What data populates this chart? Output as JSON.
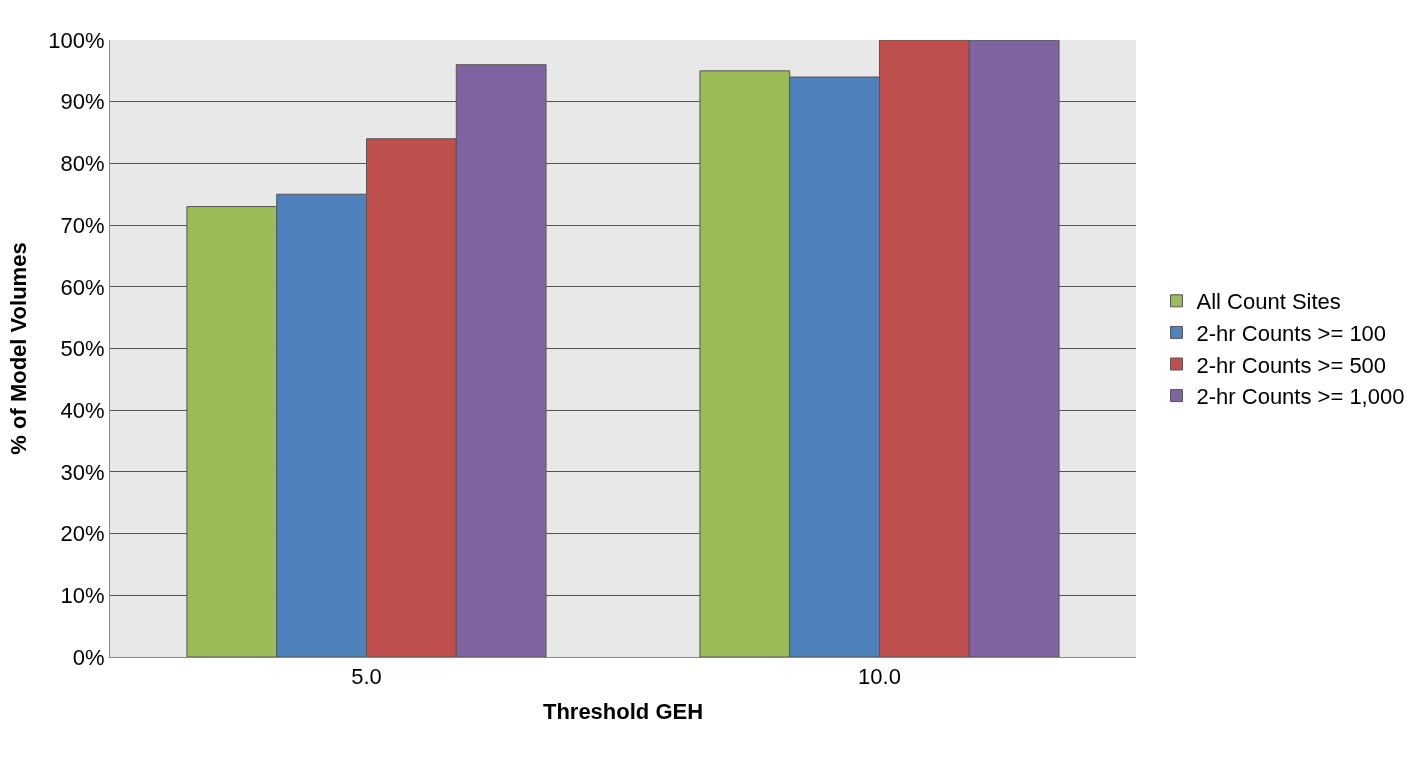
{
  "chart_data": {
    "type": "bar",
    "xlabel": "Threshold GEH",
    "ylabel": "% of Model Volumes",
    "categories": [
      "5.0",
      "10.0"
    ],
    "series": [
      {
        "name": "All Count Sites",
        "color": "#9bbb59",
        "values": [
          73,
          95
        ]
      },
      {
        "name": "2-hr Counts >= 100",
        "color": "#4f81bd",
        "values": [
          75,
          94
        ]
      },
      {
        "name": "2-hr Counts >= 500",
        "color": "#c0504d",
        "values": [
          84,
          100
        ]
      },
      {
        "name": "2-hr Counts >= 1,000",
        "color": "#8064a2",
        "values": [
          96,
          100
        ]
      }
    ],
    "ylim": [
      0,
      100
    ],
    "yticks": [
      {
        "value": 0,
        "label": "0%"
      },
      {
        "value": 10,
        "label": "10%"
      },
      {
        "value": 20,
        "label": "20%"
      },
      {
        "value": 30,
        "label": "30%"
      },
      {
        "value": 40,
        "label": "40%"
      },
      {
        "value": 50,
        "label": "50%"
      },
      {
        "value": 60,
        "label": "60%"
      },
      {
        "value": 70,
        "label": "70%"
      },
      {
        "value": 80,
        "label": "80%"
      },
      {
        "value": 90,
        "label": "90%"
      },
      {
        "value": 100,
        "label": "100%"
      }
    ],
    "grid": "y",
    "legend": "right"
  }
}
